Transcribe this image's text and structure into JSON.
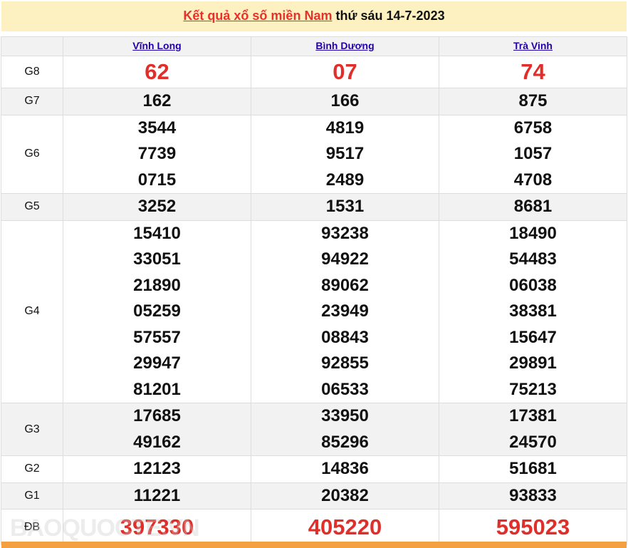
{
  "title": {
    "link": "Kết quả xổ số miền Nam",
    "date": "thứ sáu 14-7-2023"
  },
  "provinces": [
    "Vĩnh Long",
    "Bình Dương",
    "Trà Vinh"
  ],
  "prizes": [
    {
      "label": "G8",
      "values": [
        [
          "62"
        ],
        [
          "07"
        ],
        [
          "74"
        ]
      ]
    },
    {
      "label": "G7",
      "values": [
        [
          "162"
        ],
        [
          "166"
        ],
        [
          "875"
        ]
      ]
    },
    {
      "label": "G6",
      "values": [
        [
          "3544",
          "7739",
          "0715"
        ],
        [
          "4819",
          "9517",
          "2489"
        ],
        [
          "6758",
          "1057",
          "4708"
        ]
      ]
    },
    {
      "label": "G5",
      "values": [
        [
          "3252"
        ],
        [
          "1531"
        ],
        [
          "8681"
        ]
      ]
    },
    {
      "label": "G4",
      "values": [
        [
          "15410",
          "33051",
          "21890",
          "05259",
          "57557",
          "29947",
          "81201"
        ],
        [
          "93238",
          "94922",
          "89062",
          "23949",
          "08843",
          "92855",
          "06533"
        ],
        [
          "18490",
          "54483",
          "06038",
          "38381",
          "15647",
          "29891",
          "75213"
        ]
      ]
    },
    {
      "label": "G3",
      "values": [
        [
          "17685",
          "49162"
        ],
        [
          "33950",
          "85296"
        ],
        [
          "17381",
          "24570"
        ]
      ]
    },
    {
      "label": "G2",
      "values": [
        [
          "12123"
        ],
        [
          "14836"
        ],
        [
          "51681"
        ]
      ]
    },
    {
      "label": "G1",
      "values": [
        [
          "11221"
        ],
        [
          "20382"
        ],
        [
          "93833"
        ]
      ]
    },
    {
      "label": "ĐB",
      "values": [
        [
          "397330"
        ],
        [
          "405220"
        ],
        [
          "595023"
        ]
      ]
    }
  ],
  "watermark": "BAOQUOCTE.VN",
  "colors": {
    "accent": "#e02f2a",
    "link": "#2200aa",
    "title_bg": "#fdf1c1",
    "footer": "#f4a040"
  }
}
